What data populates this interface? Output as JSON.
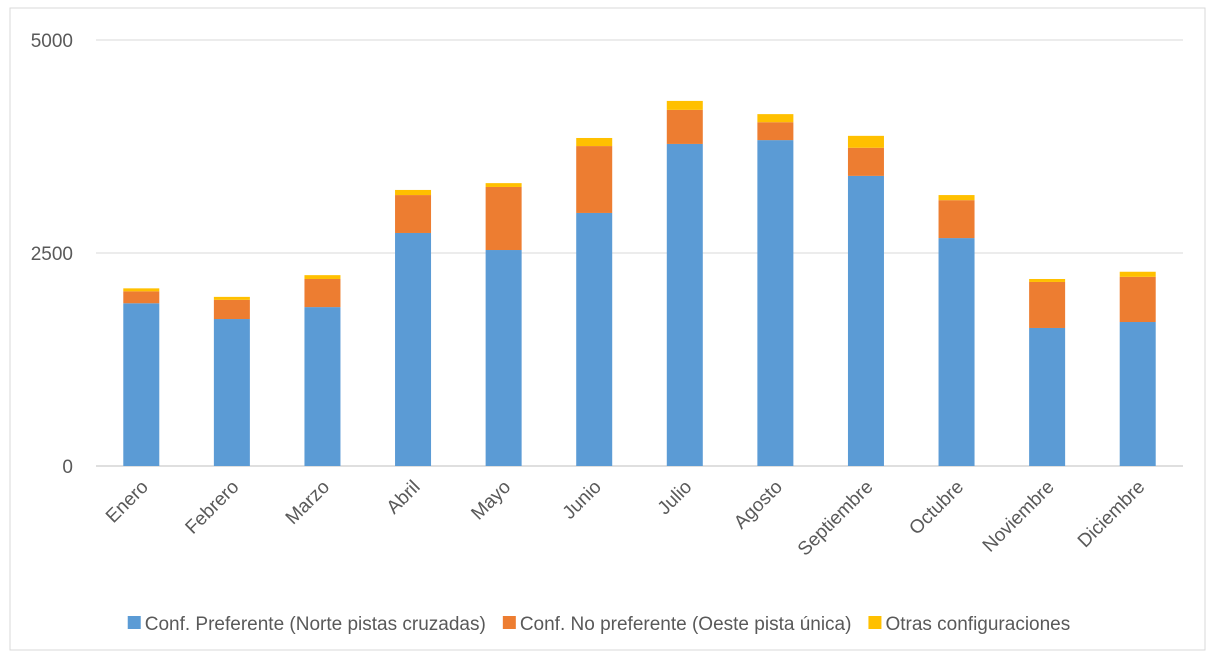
{
  "chart_data": {
    "type": "stacked_bar",
    "categories": [
      "Enero",
      "Febrero",
      "Marzo",
      "Abril",
      "Mayo",
      "Junio",
      "Julio",
      "Agosto",
      "Septiembre",
      "Octubre",
      "Noviembre",
      "Diciembre"
    ],
    "series": [
      {
        "name": "Conf. Preferente (Norte pistas cruzadas)",
        "color": "#5b9bd5",
        "values": [
          1910,
          1725,
          1865,
          2735,
          2535,
          2970,
          3780,
          3825,
          3405,
          2675,
          1620,
          1690
        ]
      },
      {
        "name": "Conf. No preferente (Oeste pista única)",
        "color": "#ed7d31",
        "values": [
          140,
          225,
          330,
          445,
          740,
          785,
          400,
          210,
          330,
          445,
          540,
          530
        ]
      },
      {
        "name": "Otras configuraciones",
        "color": "#ffc000",
        "values": [
          35,
          35,
          45,
          60,
          45,
          95,
          105,
          95,
          140,
          60,
          35,
          60
        ]
      }
    ],
    "ylim": [
      0,
      5000
    ],
    "yticks": [
      0,
      2500,
      5000
    ],
    "grid": true,
    "legend": "bottom"
  }
}
